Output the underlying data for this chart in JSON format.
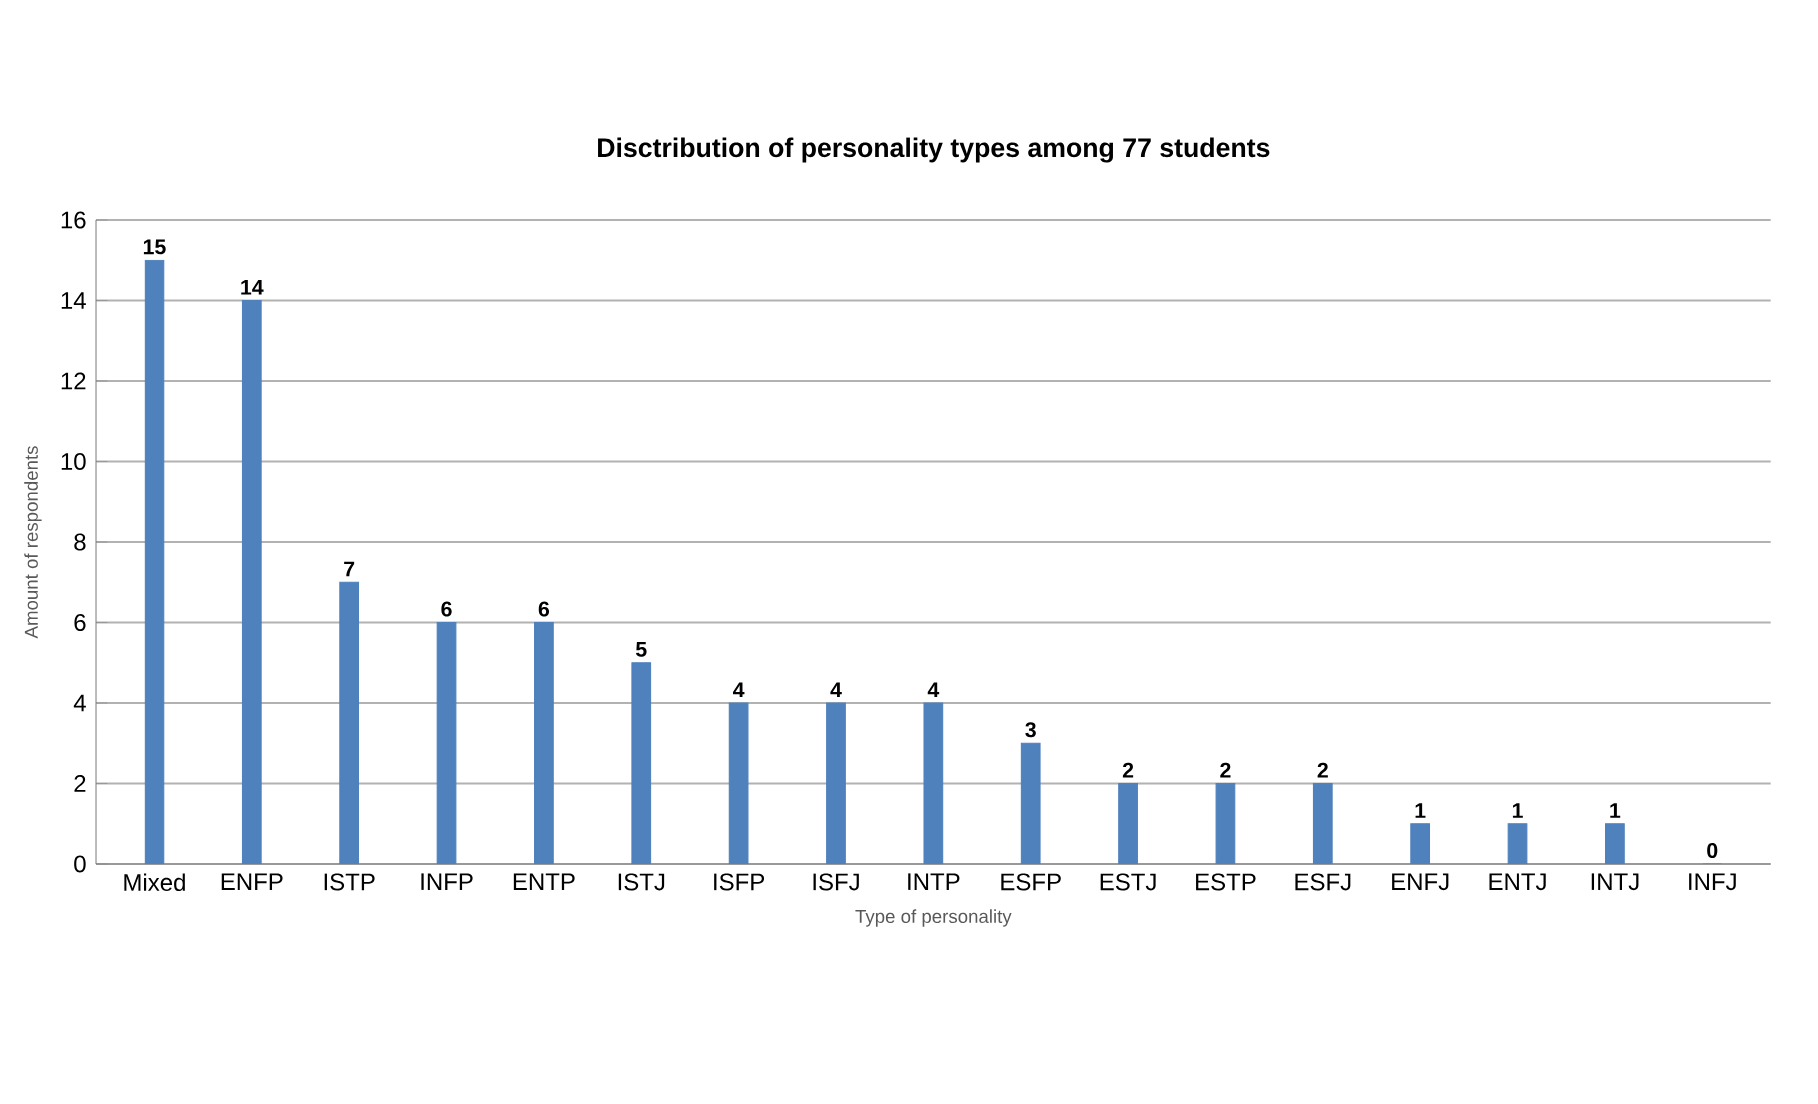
{
  "chart_data": {
    "type": "bar",
    "title": "Disctribution of personality types among 77 students",
    "xlabel": "Type of personality",
    "ylabel": "Amount of respondents",
    "categories": [
      "Mixed",
      "ENFP",
      "ISTP",
      "INFP",
      "ENTP",
      "ISTJ",
      "ISFP",
      "ISFJ",
      "INTP",
      "ESFP",
      "ESTJ",
      "ESTP",
      "ESFJ",
      "ENFJ",
      "ENTJ",
      "INTJ",
      "INFJ"
    ],
    "values": [
      15,
      14,
      7,
      6,
      6,
      5,
      4,
      4,
      4,
      3,
      2,
      2,
      2,
      1,
      1,
      1,
      0
    ],
    "color": "#4f81bd",
    "ylim": [
      0,
      16
    ],
    "yticks": [
      0,
      2,
      4,
      6,
      8,
      10,
      12,
      14,
      16
    ],
    "grid": "y",
    "data_labels": true
  }
}
